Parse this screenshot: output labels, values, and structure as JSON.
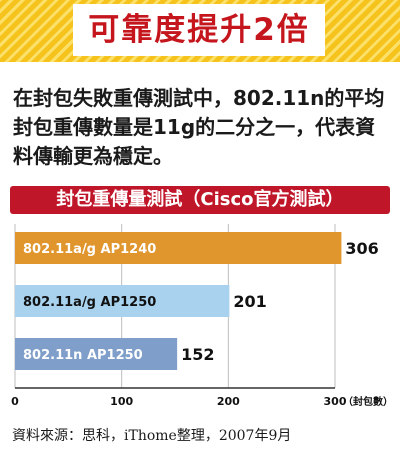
{
  "banner": {
    "title": "可靠度提升2倍"
  },
  "intro": {
    "text": "在封包失敗重傳測試中，802.11n的平均封包重傳數量是11g的二分之一，代表資料傳輸更為穩定。"
  },
  "chart_data": {
    "type": "bar",
    "orientation": "horizontal",
    "title": "封包重傳量測試（Cisco官方測試）",
    "categories": [
      "802.11a/g  AP1240",
      "802.11a/g  AP1250",
      "802.11n  AP1250"
    ],
    "values": [
      306,
      201,
      152
    ],
    "bar_colors": [
      "#e0962c",
      "#a8d2ee",
      "#7f9ec9"
    ],
    "label_colors": [
      "#ffffff",
      "#111111",
      "#ffffff"
    ],
    "xlim": [
      0,
      300
    ],
    "xticks": [
      "0",
      "100",
      "200",
      "300"
    ],
    "xunit": "（封包數）",
    "grid": true
  },
  "footer": {
    "source": "資料來源：思科，iThome整理，2007年9月"
  }
}
